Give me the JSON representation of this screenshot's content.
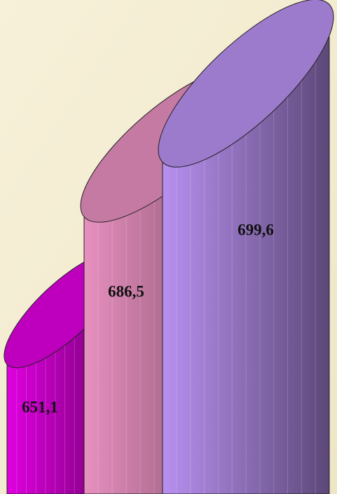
{
  "chart_data": {
    "type": "cylinder",
    "values": [
      651.1,
      686.5,
      699.6
    ],
    "value_labels": [
      "651,1",
      "686,5",
      "699,6"
    ],
    "colors": [
      "#e000e0",
      "#e890c0",
      "#b890f0"
    ],
    "ylim": [
      620,
      700
    ]
  }
}
